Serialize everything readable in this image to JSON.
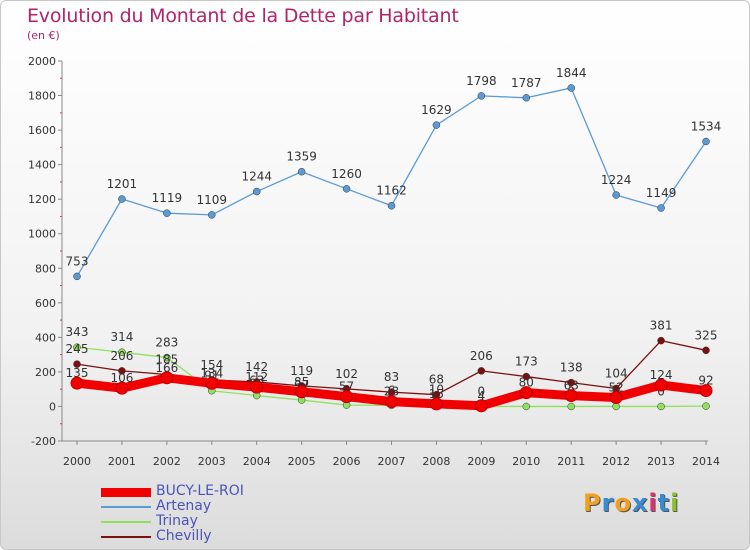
{
  "header": {
    "title": "Evolution du Montant de la Dette par Habitant",
    "subtitle": "(en €)"
  },
  "brand": {
    "letters": [
      "P",
      "r",
      "o",
      "x",
      "i",
      "t",
      "i"
    ],
    "colors": [
      "#f0a020",
      "#3a8ad0",
      "#f0a020",
      "#3a8ad0",
      "#e03070",
      "#3a8ad0",
      "#8ac030"
    ]
  },
  "chart_data": {
    "type": "line",
    "title": "Evolution du Montant de la Dette par Habitant",
    "ylabel": "(en €)",
    "x": [
      2000,
      2001,
      2002,
      2003,
      2004,
      2005,
      2006,
      2007,
      2008,
      2009,
      2010,
      2011,
      2012,
      2013,
      2014
    ],
    "ylim": [
      -200,
      2000
    ],
    "yticks": [
      -200,
      0,
      200,
      400,
      600,
      800,
      1000,
      1200,
      1400,
      1600,
      1800,
      2000
    ],
    "grid": false,
    "legend_position": "bottom-left",
    "series": [
      {
        "name": "BUCY-LE-ROI",
        "color": "#f00000",
        "values": [
          135,
          106,
          166,
          134,
          112,
          85,
          57,
          28,
          15,
          4,
          80,
          63,
          52,
          124,
          92
        ]
      },
      {
        "name": "Artenay",
        "color": "#5b9bd5",
        "values": [
          753,
          1201,
          1119,
          1109,
          1244,
          1359,
          1260,
          1162,
          1629,
          1798,
          1787,
          1844,
          1224,
          1149,
          1534
        ]
      },
      {
        "name": "Trinay",
        "color": "#90e060",
        "values": [
          343,
          314,
          283,
          91,
          63,
          37,
          8,
          6,
          10,
          0,
          0,
          0,
          0,
          0,
          2
        ]
      },
      {
        "name": "Chevilly",
        "color": "#7a1010",
        "values": [
          245,
          206,
          185,
          154,
          142,
          119,
          102,
          83,
          68,
          206,
          173,
          138,
          104,
          381,
          325
        ]
      }
    ]
  }
}
